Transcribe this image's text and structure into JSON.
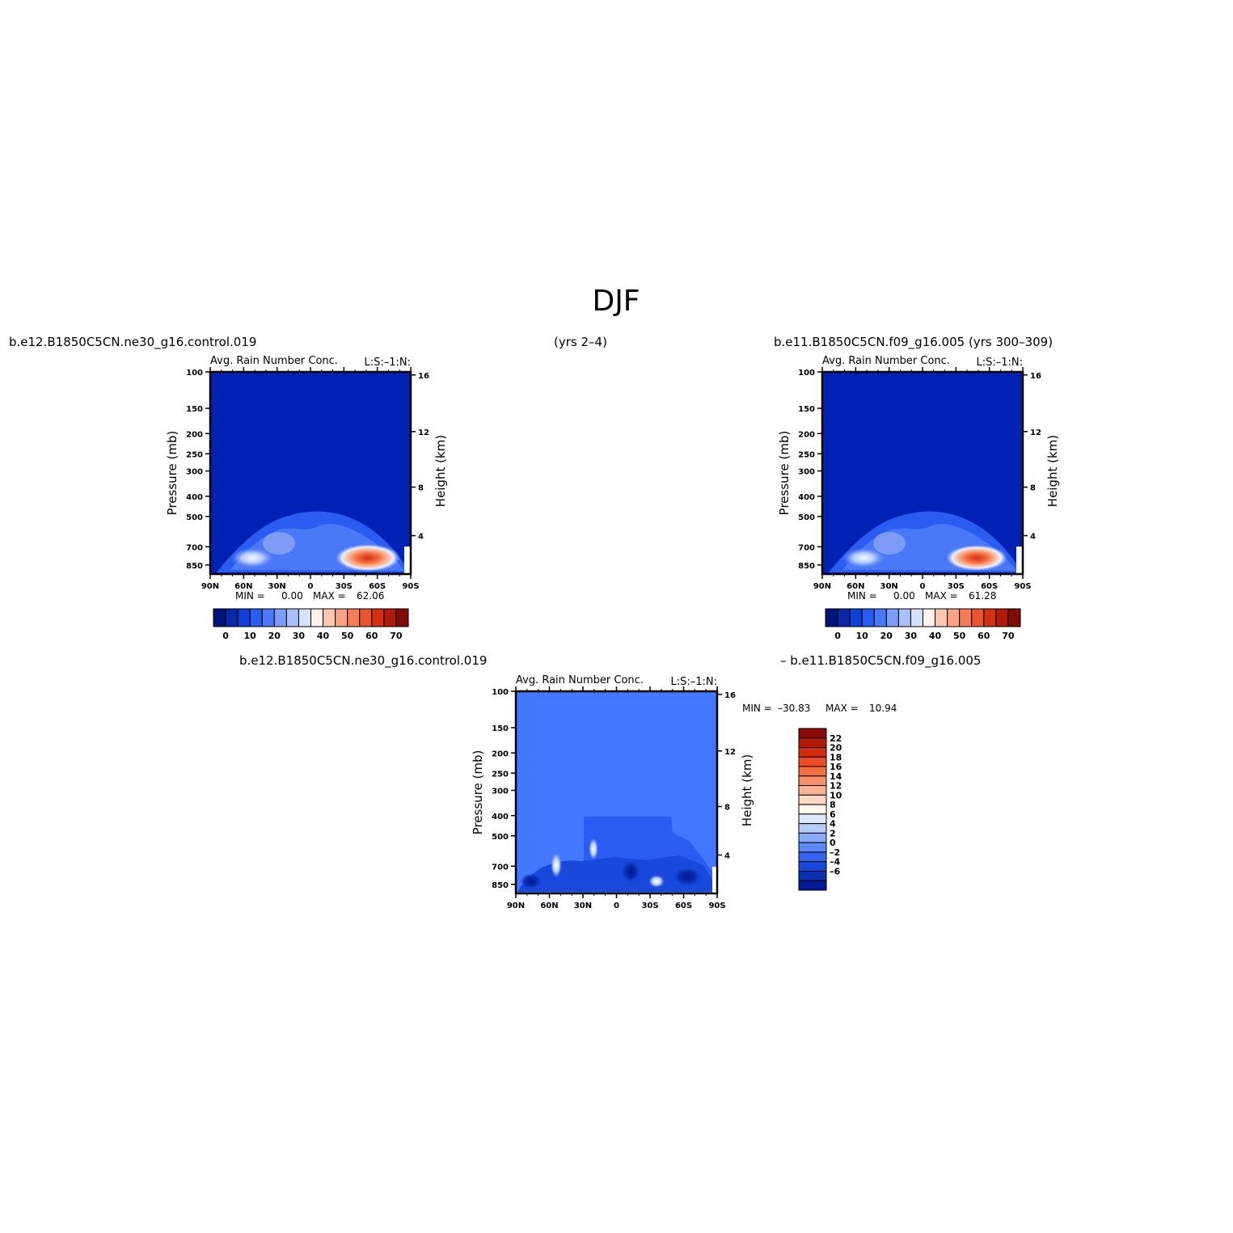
{
  "page": {
    "title": "DJF",
    "top_left_case": "b.e12.B1850C5CN.ne30_g16.control.019",
    "top_mid_years": "(yrs 2–4)",
    "top_right_case": "b.e11.B1850C5CN.f09_g16.005 (yrs 300–309)",
    "diff_left_case": "b.e12.B1850C5CN.ne30_g16.control.019",
    "diff_right_case": "– b.e11.B1850C5CN.f09_g16.005"
  },
  "colors": {
    "background_top": "#0022b4",
    "background_diff": "#4477ff",
    "high_spot": "#e04020"
  },
  "chart_data": [
    {
      "type": "heatmap",
      "title": "Avg. Rain Number Conc.",
      "corner_label": "L:S:–1:N:",
      "ylabel": "Pressure (mb)",
      "y2label": "Height (km)",
      "x_ticks": [
        "90N",
        "60N",
        "30N",
        "0",
        "30S",
        "60S",
        "90S"
      ],
      "y_ticks": [
        "100",
        "150",
        "200",
        "250",
        "300",
        "400",
        "500",
        "700",
        "850"
      ],
      "y2_ticks": [
        "16",
        "12",
        "8",
        "4"
      ],
      "stats": {
        "min_label": "MIN =",
        "min": "0.00",
        "max_label": "MAX =",
        "max": "62.06"
      },
      "colorbar": {
        "orientation": "horizontal",
        "labels": [
          "0",
          "10",
          "20",
          "30",
          "40",
          "50",
          "60",
          "70"
        ],
        "colors": [
          "#00147a",
          "#0a28a8",
          "#1040d8",
          "#2a5cf2",
          "#4a78f6",
          "#7c9cf6",
          "#a8c0f8",
          "#d4e2fc",
          "#fff2ea",
          "#fcc8b0",
          "#f8a484",
          "#f47c56",
          "#e8542e",
          "#d43012",
          "#b01a08",
          "#800c08"
        ]
      }
    },
    {
      "type": "heatmap",
      "title": "Avg. Rain Number Conc.",
      "corner_label": "L:S:–1:N:",
      "ylabel": "Pressure (mb)",
      "y2label": "Height (km)",
      "x_ticks": [
        "90N",
        "60N",
        "30N",
        "0",
        "30S",
        "60S",
        "90S"
      ],
      "y_ticks": [
        "100",
        "150",
        "200",
        "250",
        "300",
        "400",
        "500",
        "700",
        "850"
      ],
      "y2_ticks": [
        "16",
        "12",
        "8",
        "4"
      ],
      "stats": {
        "min_label": "MIN =",
        "min": "0.00",
        "max_label": "MAX =",
        "max": "61.28"
      },
      "colorbar": {
        "orientation": "horizontal",
        "labels": [
          "0",
          "10",
          "20",
          "30",
          "40",
          "50",
          "60",
          "70"
        ],
        "colors": [
          "#00147a",
          "#0a28a8",
          "#1040d8",
          "#2a5cf2",
          "#4a78f6",
          "#7c9cf6",
          "#a8c0f8",
          "#d4e2fc",
          "#fff2ea",
          "#fcc8b0",
          "#f8a484",
          "#f47c56",
          "#e8542e",
          "#d43012",
          "#b01a08",
          "#800c08"
        ]
      }
    },
    {
      "type": "heatmap",
      "title": "Avg. Rain Number Conc.",
      "corner_label": "L:S:–1:N:",
      "ylabel": "Pressure (mb)",
      "y2label": "Height (km)",
      "x_ticks": [
        "90N",
        "60N",
        "30N",
        "0",
        "30S",
        "60S",
        "90S"
      ],
      "y_ticks": [
        "100",
        "150",
        "200",
        "250",
        "300",
        "400",
        "500",
        "700",
        "850"
      ],
      "y2_ticks": [
        "16",
        "12",
        "8",
        "4"
      ],
      "stats": {
        "min_label": "MIN =",
        "min": "–30.83",
        "max_label": "MAX =",
        "max": "10.94"
      },
      "colorbar": {
        "orientation": "vertical",
        "labels": [
          "22",
          "20",
          "18",
          "16",
          "14",
          "12",
          "10",
          "8",
          "6",
          "4",
          "2",
          "0",
          "–2",
          "–4",
          "–6"
        ],
        "colors": [
          "#8c0a08",
          "#b41a0a",
          "#d42e10",
          "#ec4c24",
          "#f46e40",
          "#f89068",
          "#fab494",
          "#fcd8c4",
          "#fff6ee",
          "#dce8fc",
          "#b4ccfa",
          "#8aaaf8",
          "#5e88f6",
          "#3464f0",
          "#1848dc",
          "#0a30b4",
          "#001890"
        ]
      }
    }
  ]
}
